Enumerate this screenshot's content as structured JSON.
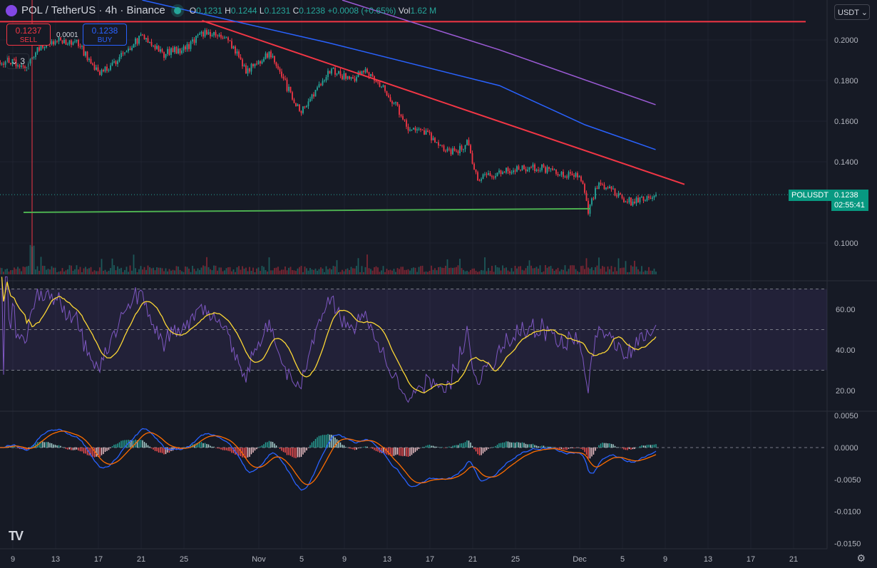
{
  "header": {
    "symbol": "POL / TetherUS · 4h · Binance",
    "o_label": "O",
    "o": "0.1231",
    "h_label": "H",
    "h": "0.1244",
    "l_label": "L",
    "l": "0.1231",
    "c_label": "C",
    "c": "0.1238",
    "change": "+0.0008 (+0.65%)",
    "vol_label": "Vol",
    "vol": "1.62 M"
  },
  "trade": {
    "sell_price": "0.1237",
    "sell_label": "SELL",
    "buy_price": "0.1238",
    "buy_label": "BUY",
    "spread": "0.0001"
  },
  "collapse_label": "⌄ 3",
  "currency": "USDT ⌄",
  "price_tag": {
    "symbol": "POLUSDT",
    "price": "0.1238",
    "countdown": "02:55:41"
  },
  "logo_text": "TV",
  "settings_icon": "⚙",
  "colors": {
    "up": "#26a69a",
    "down": "#f23645",
    "bg": "#161a25",
    "blue_ma": "#2962ff",
    "purple_ma": "#9c5bd6",
    "trend": "#f23645",
    "support": "#4caf50",
    "rsi": "#7e57c2",
    "rsi_ma": "#fdd835",
    "macd": "#2962ff",
    "signal": "#ff6d00"
  },
  "chart_data": [
    {
      "type": "candlestick",
      "title": "POL / TetherUS 4h",
      "x_unit": "days since Oct 9",
      "candles_per_day": 6,
      "price_axis": {
        "ticks": [
          "0.2000",
          "0.1800",
          "0.1600",
          "0.1400",
          "0.1000"
        ],
        "values": [
          0.2,
          0.18,
          0.16,
          0.14,
          0.1
        ],
        "range": [
          0.0865,
          0.2196
        ]
      },
      "x_ticks": [
        {
          "d": 0,
          "label": "9"
        },
        {
          "d": 4,
          "label": "13"
        },
        {
          "d": 8,
          "label": "17"
        },
        {
          "d": 12,
          "label": "21"
        },
        {
          "d": 16,
          "label": "25"
        },
        {
          "d": 23,
          "label": "Nov"
        },
        {
          "d": 27,
          "label": "5"
        },
        {
          "d": 31,
          "label": "9"
        },
        {
          "d": 35,
          "label": "13"
        },
        {
          "d": 39,
          "label": "17"
        },
        {
          "d": 43,
          "label": "21"
        },
        {
          "d": 47,
          "label": "25"
        },
        {
          "d": 53,
          "label": "Dec"
        },
        {
          "d": 57,
          "label": "5"
        },
        {
          "d": 61,
          "label": "9"
        },
        {
          "d": 65,
          "label": "13"
        },
        {
          "d": 69,
          "label": "17"
        },
        {
          "d": 73,
          "label": "21"
        }
      ],
      "close_path": [
        [
          -1.2,
          0.19
        ],
        [
          1.5,
          0.187
        ],
        [
          2.1,
          0.195
        ],
        [
          4.1,
          0.2
        ],
        [
          6.1,
          0.198
        ],
        [
          8.1,
          0.183
        ],
        [
          10.1,
          0.192
        ],
        [
          12.1,
          0.202
        ],
        [
          14.1,
          0.193
        ],
        [
          16.1,
          0.196
        ],
        [
          18.1,
          0.204
        ],
        [
          20.1,
          0.2
        ],
        [
          21.8,
          0.185
        ],
        [
          24.1,
          0.193
        ],
        [
          25.8,
          0.175
        ],
        [
          26.8,
          0.165
        ],
        [
          28.1,
          0.172
        ],
        [
          29.8,
          0.186
        ],
        [
          31.5,
          0.18
        ],
        [
          33.1,
          0.185
        ],
        [
          34.8,
          0.176
        ],
        [
          36.1,
          0.165
        ],
        [
          37.1,
          0.156
        ],
        [
          38.8,
          0.154
        ],
        [
          39.8,
          0.147
        ],
        [
          41.5,
          0.145
        ],
        [
          42.5,
          0.149
        ],
        [
          43.5,
          0.131
        ],
        [
          44.8,
          0.134
        ],
        [
          46.8,
          0.136
        ],
        [
          49.5,
          0.137
        ],
        [
          51.5,
          0.134
        ],
        [
          53.1,
          0.132
        ],
        [
          53.8,
          0.116
        ],
        [
          54.8,
          0.13
        ],
        [
          56.1,
          0.125
        ],
        [
          57.8,
          0.12
        ],
        [
          60.2,
          0.1238
        ]
      ],
      "lines": {
        "resistance_horizontal": {
          "price": 0.209
        },
        "trendline": [
          [
            17.7,
            0.2095
          ],
          [
            62.8,
            0.1289
          ]
        ],
        "support": [
          [
            1.0,
            0.1151
          ],
          [
            54.0,
            0.1169
          ]
        ],
        "blue_ma": [
          [
            12.1,
            0.2196
          ],
          [
            29.5,
            0.1986
          ],
          [
            45.5,
            0.1775
          ],
          [
            53.5,
            0.1582
          ],
          [
            60.1,
            0.146
          ]
        ],
        "purple_ma": [
          [
            30.8,
            0.2196
          ],
          [
            45.5,
            0.1951
          ],
          [
            60.1,
            0.1681
          ]
        ]
      },
      "event_line_day": 1.8,
      "last_price": 0.1238
    },
    {
      "type": "line",
      "title": "RSI",
      "ticks": [
        "60.00",
        "40.00",
        "20.00"
      ],
      "values": [
        60,
        40,
        20
      ],
      "range": [
        14,
        76
      ],
      "bands": [
        70,
        50,
        30
      ]
    },
    {
      "type": "line+bar",
      "title": "MACD",
      "ticks": [
        "0.0050",
        "0.0000",
        "-0.0050",
        "-0.0100",
        "-0.0150"
      ],
      "values": [
        0.005,
        0,
        -0.005,
        -0.01,
        -0.015
      ],
      "range": [
        -0.0165,
        0.0065
      ]
    }
  ]
}
